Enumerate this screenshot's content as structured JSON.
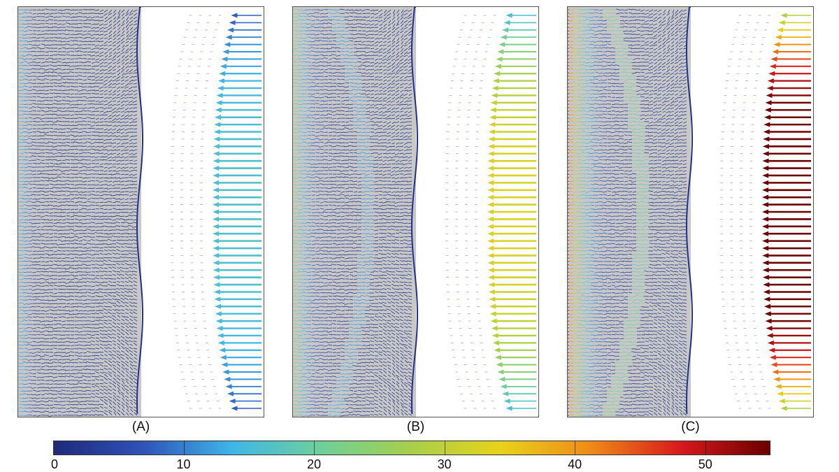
{
  "panels": [
    {
      "label": "(A)",
      "scale": 0.32
    },
    {
      "label": "(B)",
      "scale": 0.55
    },
    {
      "label": "(C)",
      "scale": 1.0
    }
  ],
  "colorbar": {
    "min": 0,
    "max": 55,
    "ticks": [
      "0",
      "10",
      "20",
      "30",
      "40",
      "50"
    ],
    "colors": [
      "#1f2a7a",
      "#2f52b8",
      "#3fb6e8",
      "#6fcf9a",
      "#a8cf4a",
      "#e8d21a",
      "#ef8a17",
      "#d7191c",
      "#6b0000"
    ]
  },
  "colors": {
    "background": "#c8c8c8",
    "vector_base": "#2a3b9a"
  }
}
